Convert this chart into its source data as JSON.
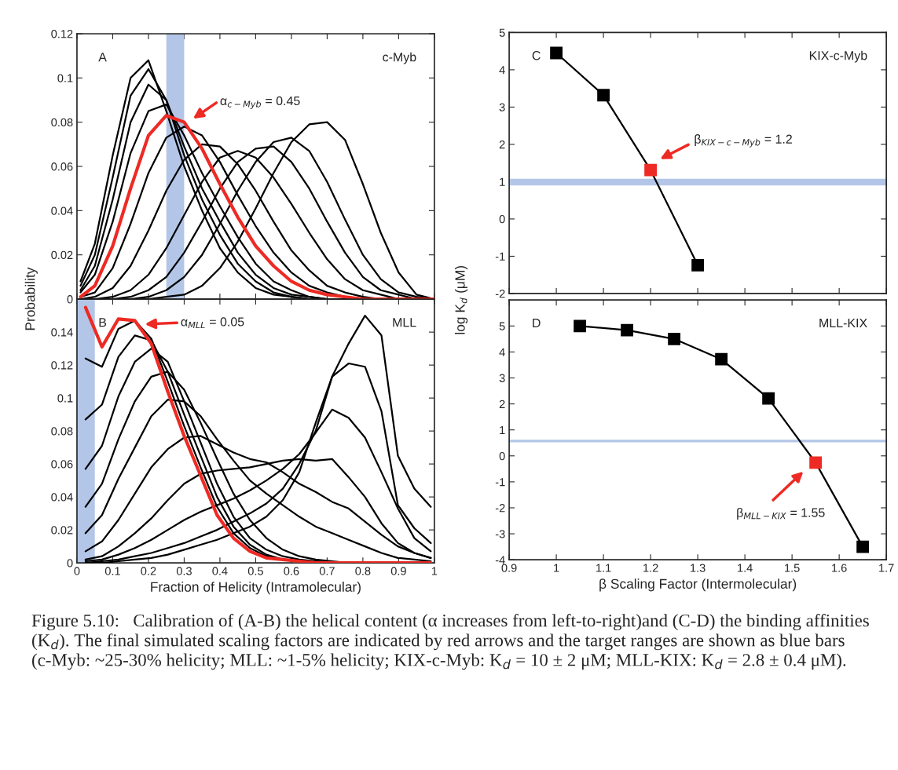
{
  "chart_data": [
    {
      "type": "line",
      "title": "c-Myb",
      "annotations": [
        "A",
        "α$_{c−Myb}$ = 0.45"
      ],
      "x": [
        0.01,
        0.05,
        0.1,
        0.15,
        0.2,
        0.25,
        0.3,
        0.35,
        0.4,
        0.45,
        0.5,
        0.55,
        0.6,
        0.65,
        0.7,
        0.75,
        0.8,
        0.85,
        0.9,
        0.95,
        1
      ],
      "series": [
        {
          "color": "#000000",
          "values": [
            0.008,
            0.025,
            0.065,
            0.1,
            0.108,
            0.085,
            0.06,
            0.04,
            0.023,
            0.012,
            0.005,
            0.002,
            0.001,
            0,
            0,
            0,
            0,
            0,
            0,
            0,
            0
          ]
        },
        {
          "color": "#000000",
          "values": [
            0.006,
            0.02,
            0.055,
            0.092,
            0.104,
            0.09,
            0.065,
            0.045,
            0.029,
            0.016,
            0.008,
            0.003,
            0.001,
            0,
            0,
            0,
            0,
            0,
            0,
            0,
            0
          ]
        },
        {
          "color": "#000000",
          "values": [
            0.004,
            0.015,
            0.045,
            0.08,
            0.097,
            0.09,
            0.069,
            0.05,
            0.035,
            0.021,
            0.011,
            0.005,
            0.002,
            0.001,
            0,
            0,
            0,
            0,
            0,
            0,
            0
          ]
        },
        {
          "color": "#000000",
          "values": [
            0.003,
            0.011,
            0.035,
            0.066,
            0.085,
            0.088,
            0.074,
            0.057,
            0.042,
            0.028,
            0.016,
            0.008,
            0.004,
            0.001,
            0,
            0,
            0,
            0,
            0,
            0,
            0
          ]
        },
        {
          "color": "#000000",
          "values": [
            0.001,
            0.003,
            0.014,
            0.034,
            0.057,
            0.073,
            0.078,
            0.074,
            0.062,
            0.047,
            0.033,
            0.021,
            0.012,
            0.006,
            0.003,
            0.001,
            0,
            0,
            0,
            0,
            0
          ]
        },
        {
          "color": "#000000",
          "values": [
            0,
            0.001,
            0.005,
            0.015,
            0.031,
            0.049,
            0.063,
            0.07,
            0.069,
            0.061,
            0.049,
            0.035,
            0.022,
            0.013,
            0.006,
            0.003,
            0.001,
            0,
            0,
            0,
            0
          ]
        },
        {
          "color": "#000000",
          "values": [
            0,
            0,
            0.001,
            0.004,
            0.011,
            0.023,
            0.038,
            0.053,
            0.064,
            0.067,
            0.064,
            0.055,
            0.043,
            0.03,
            0.018,
            0.009,
            0.004,
            0.002,
            0,
            0,
            0
          ]
        },
        {
          "color": "#000000",
          "values": [
            0,
            0,
            0,
            0.001,
            0.004,
            0.01,
            0.021,
            0.035,
            0.05,
            0.062,
            0.068,
            0.069,
            0.062,
            0.05,
            0.035,
            0.021,
            0.01,
            0.004,
            0.002,
            0,
            0
          ]
        },
        {
          "color": "#000000",
          "values": [
            0,
            0,
            0,
            0,
            0.001,
            0.004,
            0.01,
            0.02,
            0.034,
            0.049,
            0.062,
            0.071,
            0.073,
            0.067,
            0.053,
            0.036,
            0.02,
            0.009,
            0.003,
            0.001,
            0
          ]
        },
        {
          "color": "#000000",
          "values": [
            0,
            0,
            0,
            0,
            0,
            0.001,
            0.002,
            0.006,
            0.014,
            0.026,
            0.041,
            0.057,
            0.071,
            0.079,
            0.08,
            0.072,
            0.052,
            0.03,
            0.012,
            0.002,
            0
          ]
        },
        {
          "color": "#ee2a24",
          "values": [
            0.001,
            0.006,
            0.024,
            0.05,
            0.074,
            0.083,
            0.08,
            0.068,
            0.052,
            0.037,
            0.024,
            0.015,
            0.008,
            0.004,
            0.002,
            0.001,
            0,
            0,
            0,
            0,
            0
          ]
        }
      ],
      "xlim": [
        0,
        1
      ],
      "xticks": [
        0,
        0.1,
        0.2,
        0.3,
        0.4,
        0.5,
        0.6,
        0.7,
        0.8,
        0.9,
        1
      ],
      "ylim": [
        0,
        0.12
      ],
      "yticks": [
        0,
        0.02,
        0.04,
        0.06,
        0.08,
        0.1,
        0.12
      ],
      "tick_labels": "y",
      "bands": [
        {
          "axis": "x",
          "from": 0.25,
          "to": 0.3,
          "color": "#b3c6e7"
        }
      ]
    },
    {
      "type": "line",
      "title": "MLL",
      "xlabel": "Fraction of Helicity (Intramolecular)",
      "ylabel": "Probability",
      "annotations": [
        "B",
        "α$_{MLL}$ = 0.05"
      ],
      "x": [
        0.024,
        0.07,
        0.116,
        0.162,
        0.208,
        0.254,
        0.3,
        0.346,
        0.392,
        0.438,
        0.484,
        0.53,
        0.576,
        0.622,
        0.668,
        0.714,
        0.76,
        0.806,
        0.852,
        0.898,
        0.944,
        0.99
      ],
      "series": [
        {
          "color": "#000000",
          "values": [
            0.124,
            0.119,
            0.142,
            0.147,
            0.136,
            0.11,
            0.083,
            0.058,
            0.034,
            0.018,
            0.009,
            0.004,
            0.002,
            0.001,
            0,
            0,
            0,
            0,
            0,
            0,
            0,
            0
          ]
        },
        {
          "color": "#000000",
          "values": [
            0.087,
            0.096,
            0.125,
            0.138,
            0.135,
            0.116,
            0.09,
            0.065,
            0.04,
            0.022,
            0.011,
            0.005,
            0.002,
            0.001,
            0.001,
            0,
            0,
            0,
            0,
            0,
            0,
            0
          ]
        },
        {
          "color": "#000000",
          "values": [
            0.057,
            0.071,
            0.101,
            0.122,
            0.13,
            0.122,
            0.098,
            0.073,
            0.048,
            0.028,
            0.015,
            0.008,
            0.004,
            0.002,
            0.001,
            0,
            0,
            0,
            0,
            0,
            0,
            0
          ]
        },
        {
          "color": "#000000",
          "values": [
            0.034,
            0.048,
            0.075,
            0.098,
            0.113,
            0.116,
            0.105,
            0.085,
            0.063,
            0.042,
            0.026,
            0.015,
            0.008,
            0.004,
            0.002,
            0.001,
            0,
            0,
            0,
            0,
            0,
            0
          ]
        },
        {
          "color": "#000000",
          "values": [
            0.018,
            0.029,
            0.051,
            0.07,
            0.089,
            0.099,
            0.098,
            0.089,
            0.075,
            0.062,
            0.05,
            0.042,
            0.035,
            0.028,
            0.022,
            0.018,
            0.014,
            0.01,
            0.006,
            0.003,
            0.002,
            0.001
          ]
        },
        {
          "color": "#000000",
          "values": [
            0.007,
            0.013,
            0.026,
            0.042,
            0.058,
            0.069,
            0.076,
            0.077,
            0.072,
            0.067,
            0.063,
            0.061,
            0.055,
            0.048,
            0.043,
            0.037,
            0.033,
            0.025,
            0.017,
            0.01,
            0.006,
            0.003
          ]
        },
        {
          "color": "#000000",
          "values": [
            0.002,
            0.004,
            0.01,
            0.018,
            0.027,
            0.038,
            0.048,
            0.054,
            0.056,
            0.057,
            0.058,
            0.06,
            0.062,
            0.063,
            0.062,
            0.063,
            0.052,
            0.04,
            0.024,
            0.012,
            0.006,
            0.003
          ]
        },
        {
          "color": "#000000",
          "values": [
            0.001,
            0.002,
            0.005,
            0.009,
            0.014,
            0.02,
            0.026,
            0.031,
            0.035,
            0.039,
            0.044,
            0.05,
            0.057,
            0.066,
            0.079,
            0.093,
            0.088,
            0.076,
            0.055,
            0.033,
            0.015,
            0.007
          ]
        },
        {
          "color": "#000000",
          "values": [
            0,
            0.001,
            0.002,
            0.004,
            0.006,
            0.009,
            0.012,
            0.016,
            0.02,
            0.025,
            0.03,
            0.036,
            0.045,
            0.06,
            0.08,
            0.113,
            0.121,
            0.119,
            0.092,
            0.035,
            0.021,
            0.012
          ]
        },
        {
          "color": "#000000",
          "values": [
            0,
            0,
            0.001,
            0.002,
            0.003,
            0.005,
            0.008,
            0.011,
            0.014,
            0.018,
            0.022,
            0.028,
            0.038,
            0.055,
            0.085,
            0.113,
            0.133,
            0.15,
            0.138,
            0.065,
            0.045,
            0.034
          ]
        },
        {
          "color": "#ee2a24",
          "values": [
            0.155,
            0.131,
            0.148,
            0.147,
            0.133,
            0.104,
            0.077,
            0.053,
            0.029,
            0.015,
            0.007,
            0.003,
            0.002,
            0.001,
            0,
            0,
            0,
            0,
            0,
            0,
            0,
            0
          ]
        }
      ],
      "xlim": [
        0,
        1
      ],
      "xticks": [
        0,
        0.1,
        0.2,
        0.3,
        0.4,
        0.5,
        0.6,
        0.7,
        0.8,
        0.9,
        1
      ],
      "ylim": [
        0,
        0.16
      ],
      "yticks": [
        0,
        0.02,
        0.04,
        0.06,
        0.08,
        0.1,
        0.12,
        0.14
      ],
      "bands": [
        {
          "axis": "x",
          "from": 0,
          "to": 0.05,
          "color": "#b3c6e7"
        }
      ]
    },
    {
      "type": "line",
      "title": "KIX-c-Myb",
      "annotations": [
        "C",
        "β$_{KIX−c−Myb}$ = 1.2"
      ],
      "marker": "square",
      "x": [
        1,
        1.1,
        1.2,
        1.3
      ],
      "series": [
        {
          "color": "#000000",
          "colors": [
            "#000000",
            "#000000",
            "#ee2a24",
            "#000000"
          ],
          "values": [
            4.45,
            3.32,
            1.31,
            -1.24
          ]
        }
      ],
      "xlim": [
        0.9,
        1.7
      ],
      "xticks": [
        0.9,
        1,
        1.1,
        1.2,
        1.3,
        1.4,
        1.5,
        1.6,
        1.7
      ],
      "ylim": [
        -2,
        5
      ],
      "yticks": [
        -2,
        -1,
        0,
        1,
        2,
        3,
        4,
        5
      ],
      "tick_labels": "y",
      "bands": [
        {
          "axis": "y",
          "from": 0.9,
          "to": 1.08,
          "color": "#b3c6e7"
        }
      ]
    },
    {
      "type": "line",
      "title": "MLL-KIX",
      "xlabel": "β Scaling Factor (Intermolecular)",
      "ylabel": "log K$_{d}$ (μM)",
      "annotations": [
        "D",
        "β$_{MLL−KIX}$ = 1.55"
      ],
      "marker": "square",
      "x": [
        1.05,
        1.15,
        1.25,
        1.35,
        1.45,
        1.55,
        1.65
      ],
      "series": [
        {
          "color": "#000000",
          "colors": [
            "#000000",
            "#000000",
            "#000000",
            "#000000",
            "#000000",
            "#ee2a24",
            "#000000"
          ],
          "values": [
            5,
            4.84,
            4.5,
            3.72,
            2.21,
            -0.26,
            -3.5
          ]
        }
      ],
      "xlim": [
        0.9,
        1.7
      ],
      "xticks": [
        0.9,
        1,
        1.1,
        1.2,
        1.3,
        1.4,
        1.5,
        1.6,
        1.7
      ],
      "ylim": [
        -4,
        6
      ],
      "yticks": [
        -4,
        -3,
        -2,
        -1,
        0,
        1,
        2,
        3,
        4,
        5
      ],
      "bands": [
        {
          "axis": "y",
          "from": 0.52,
          "to": 0.62,
          "color": "#b3c6e7"
        }
      ]
    },
    {
      "type": "other",
      "annotations": [
        "Figure 5.10:   Calibration of (A-B) the helical content (α increases from left-to-right)and (C-D) the binding affinities (K$_{d}$). The final simulated scaling factors are indicated by red arrows and the target ranges are shown as blue bars (c-Myb: ~25-30% helicity; MLL: ~1-5% helicity; KIX-c-Myb: K$_{d}$ = 10 ± 2 μM; MLL-KIX: K$_{d}$ = 2.8 ± 0.4 μM)."
      ]
    }
  ]
}
